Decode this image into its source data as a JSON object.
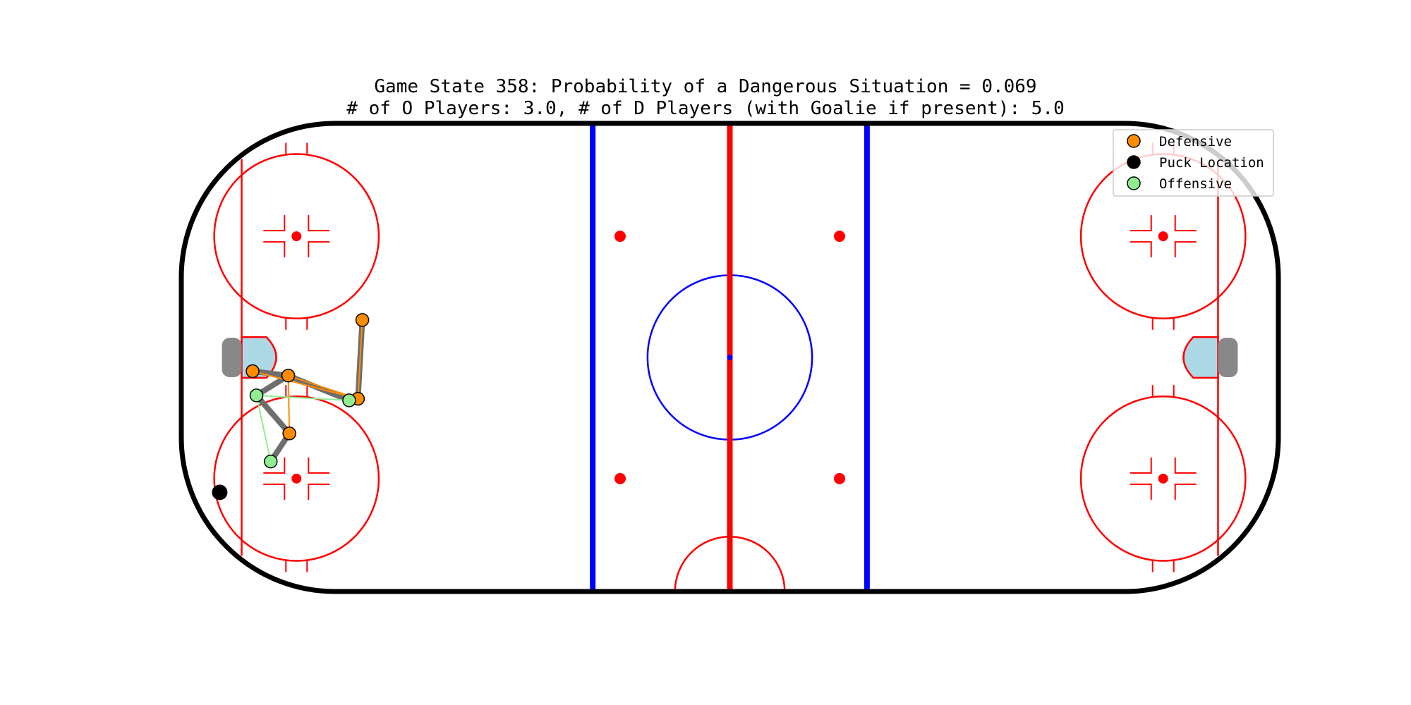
{
  "title": {
    "line1": "Game State 358: Probability of a Dangerous Situation = 0.069",
    "line2": "# of O Players: 3.0, # of D Players (with Goalie if present): 5.0"
  },
  "legend": {
    "placement": "top-right",
    "items": [
      {
        "label": "Defensive",
        "color": "#ff8c00",
        "marker": "circle"
      },
      {
        "label": "Puck Location",
        "color": "#000000",
        "marker": "circle"
      },
      {
        "label": "Offensive",
        "color": "#90ee90",
        "marker": "circle"
      }
    ]
  },
  "colors": {
    "boards": "#000000",
    "red_line": "#ff0000",
    "blue_line": "#0000ff",
    "crease": "#add8e6",
    "net": "#888888",
    "edge": "#6e6e6e",
    "defensive_link": "#ff8c00",
    "offensive_link": "#90ee90"
  },
  "chart_data": {
    "type": "scatter",
    "xlim": [
      -100,
      100
    ],
    "ylim": [
      -42.5,
      42.5
    ],
    "grid": false,
    "puck": {
      "x": -93,
      "y": -24.5
    },
    "defensive_players": [
      {
        "id": "d1",
        "x": -87,
        "y": -2.5
      },
      {
        "id": "d2",
        "x": -80.5,
        "y": -3.3
      },
      {
        "id": "d3",
        "x": -67,
        "y": 6.8
      },
      {
        "id": "d4",
        "x": -67.8,
        "y": -7.5
      },
      {
        "id": "d5",
        "x": -80.3,
        "y": -13.8
      }
    ],
    "offensive_players": [
      {
        "id": "o1",
        "x": -86.3,
        "y": -6.9
      },
      {
        "id": "o2",
        "x": -69.4,
        "y": -7.8
      },
      {
        "id": "o3",
        "x": -83.7,
        "y": -18.9
      }
    ],
    "thick_edges": [
      [
        "d1",
        "d2"
      ],
      [
        "d2",
        "o2"
      ],
      [
        "o2",
        "d4"
      ],
      [
        "d4",
        "d3"
      ],
      [
        "d2",
        "o1"
      ],
      [
        "o1",
        "d5"
      ],
      [
        "d5",
        "o3"
      ]
    ],
    "defensive_links": [
      [
        "d1",
        "d4"
      ],
      [
        "d2",
        "d4"
      ],
      [
        "d2",
        "d5"
      ],
      [
        "d4",
        "d3"
      ]
    ],
    "offensive_links": [
      [
        "o1",
        "o2"
      ],
      [
        "o1",
        "o3"
      ]
    ]
  }
}
